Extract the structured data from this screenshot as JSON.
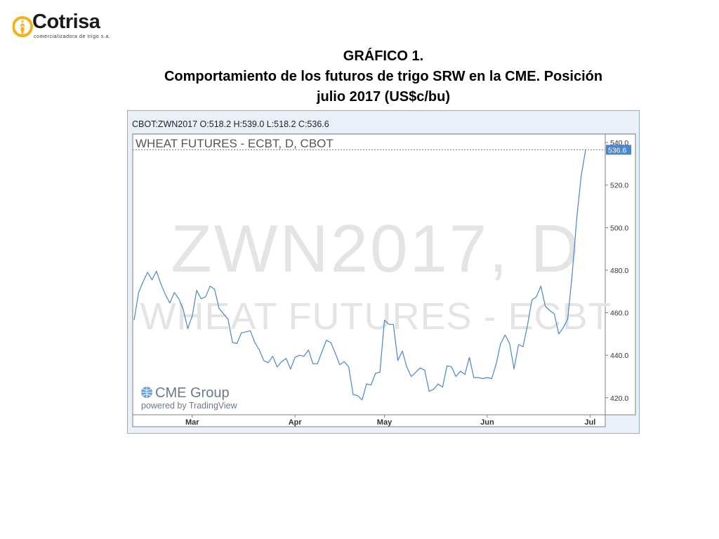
{
  "logo": {
    "name": "Cotrisa",
    "tagline": "comercializadora de trigo s.a.",
    "colors": {
      "mark": "#f2b11b",
      "text": "#1b1b1b"
    }
  },
  "heading": {
    "line1": "GRÁFICO 1.",
    "line2": "Comportamiento de los futuros de trigo SRW en la CME. Posición",
    "line3": "julio 2017 (US$c/bu)"
  },
  "chart_data": {
    "type": "line",
    "ohlc_header": "CBOT:ZWN2017 O:518.2 H:539.0 L:518.2 C:536.6",
    "series_title": "WHEAT FUTURES - ECBT, D, CBOT",
    "watermark_symbol": "ZWN2017, D",
    "watermark_name": "WHEAT FUTURES - ECBT",
    "branding": {
      "name": "CME Group",
      "powered": "powered by TradingView"
    },
    "last_price_label": "536.6",
    "last_value": 536.6,
    "xlabel": "",
    "ylabel": "",
    "ylim": [
      412,
      544
    ],
    "y_ticks": [
      420,
      440,
      460,
      480,
      500,
      520,
      540
    ],
    "y_tick_labels": [
      "420.0",
      "440.0",
      "460.0",
      "480.0",
      "500.0",
      "520.0",
      "540.0"
    ],
    "x_ticks": [
      {
        "label": "Mar",
        "index": 13
      },
      {
        "label": "Apr",
        "index": 36
      },
      {
        "label": "May",
        "index": 56
      },
      {
        "label": "Jun",
        "index": 79
      },
      {
        "label": "Jul",
        "index": 102
      }
    ],
    "line_color": "#4a86cc",
    "values": [
      456.5,
      469.5,
      474.5,
      479,
      475.5,
      479.5,
      473.5,
      468.5,
      464.5,
      469.5,
      466.5,
      461.5,
      452.5,
      458.5,
      470.5,
      466.5,
      467.5,
      472.5,
      471,
      462,
      459.5,
      457,
      446,
      445.5,
      450.5,
      451,
      451.5,
      446,
      442.5,
      437.5,
      436.5,
      439.5,
      434.5,
      437,
      438.5,
      433.5,
      439,
      440,
      439.5,
      442.5,
      436,
      436,
      441.5,
      447,
      446,
      441,
      435.5,
      437,
      434.5,
      421.5,
      421,
      419,
      426.5,
      426,
      431.5,
      432,
      456.5,
      454.5,
      454.5,
      437.5,
      442,
      434.5,
      430,
      432,
      434,
      433,
      423,
      424,
      426.5,
      425,
      435,
      434.5,
      430,
      432.5,
      431,
      439,
      429.5,
      429.5,
      429,
      429.5,
      429,
      436,
      445.5,
      449.5,
      445.5,
      433.5,
      445,
      444,
      454,
      466,
      467.5,
      472.5,
      463,
      461,
      459.5,
      450,
      453,
      457,
      478,
      504,
      524,
      536.6
    ]
  }
}
